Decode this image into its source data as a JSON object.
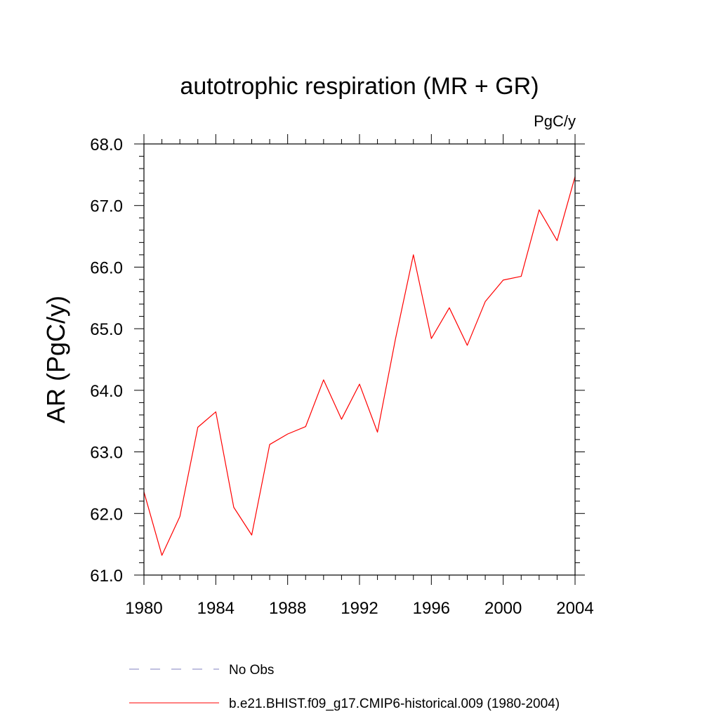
{
  "chart_data": {
    "type": "line",
    "title": "autotrophic respiration (MR + GR)",
    "units_label": "PgC/y",
    "ylabel": "AR  (PgC/y)",
    "xlabel": "",
    "xlim": [
      1980,
      2004
    ],
    "ylim": [
      61.0,
      68.0
    ],
    "xticks": [
      1980,
      1984,
      1988,
      1992,
      1996,
      2000,
      2004
    ],
    "xtick_labels": [
      "1980",
      "1984",
      "1988",
      "1992",
      "1996",
      "2000",
      "2004"
    ],
    "yticks": [
      61.0,
      62.0,
      63.0,
      64.0,
      65.0,
      66.0,
      67.0,
      68.0
    ],
    "ytick_labels": [
      "61.0",
      "62.0",
      "63.0",
      "64.0",
      "65.0",
      "66.0",
      "67.0",
      "68.0"
    ],
    "x": [
      1980,
      1981,
      1982,
      1983,
      1984,
      1985,
      1986,
      1987,
      1988,
      1989,
      1990,
      1991,
      1992,
      1993,
      1994,
      1995,
      1996,
      1997,
      1998,
      1999,
      2000,
      2001,
      2002,
      2003,
      2004
    ],
    "series": [
      {
        "name": "b.e21.BHIST.f09_g17.CMIP6-historical.009 (1980-2004)",
        "color": "#ff0000",
        "style": "solid",
        "values": [
          62.35,
          61.32,
          61.95,
          63.4,
          63.65,
          62.1,
          61.65,
          63.12,
          63.29,
          63.41,
          64.17,
          63.53,
          64.1,
          63.32,
          64.83,
          66.2,
          64.84,
          65.34,
          64.73,
          65.44,
          65.79,
          65.85,
          66.93,
          66.43,
          67.47
        ]
      }
    ],
    "legend": {
      "placement": "bottom",
      "entries": [
        {
          "label": "No Obs",
          "color": "#8080c0",
          "style": "dashed"
        },
        {
          "label": "b.e21.BHIST.f09_g17.CMIP6-historical.009 (1980-2004)",
          "color": "#ff0000",
          "style": "solid"
        }
      ]
    },
    "grid": false
  }
}
